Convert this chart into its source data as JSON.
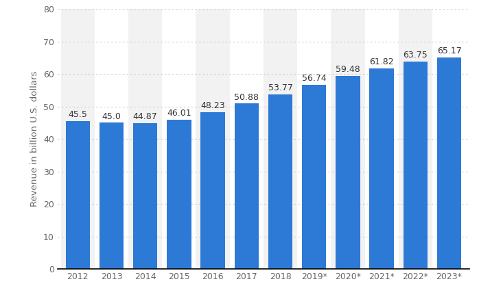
{
  "categories": [
    "2012",
    "2013",
    "2014",
    "2015",
    "2016",
    "2017",
    "2018",
    "2019*",
    "2020*",
    "2021*",
    "2022*",
    "2023*"
  ],
  "values": [
    45.5,
    45.0,
    44.87,
    46.01,
    48.23,
    50.88,
    53.77,
    56.74,
    59.48,
    61.82,
    63.75,
    65.17
  ],
  "bar_color": "#2d79d6",
  "ylabel": "Revenue in billion U.S. dollars",
  "ylim": [
    0,
    80
  ],
  "yticks": [
    0,
    10,
    20,
    30,
    40,
    50,
    60,
    70,
    80
  ],
  "background_color": "#ffffff",
  "plot_bg_color": "#ffffff",
  "column_band_color": "#f2f2f2",
  "grid_color": "#cccccc",
  "label_fontsize": 9.0,
  "axis_label_fontsize": 9.5,
  "tick_label_color": "#666666",
  "bar_label_color": "#333333",
  "bar_width": 0.72
}
